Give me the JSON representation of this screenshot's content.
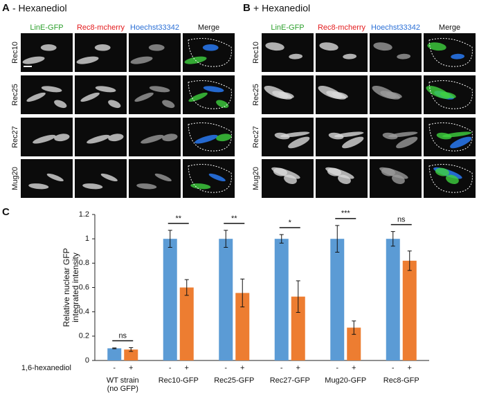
{
  "panels": [
    {
      "label": "A",
      "title": "- Hexanediol",
      "columns": [
        "LinE-GFP",
        "Rec8-mcherry",
        "Hoechst33342",
        "Merge"
      ],
      "rows": [
        "Rec10",
        "Rec25",
        "Rec27",
        "Mug20"
      ]
    },
    {
      "label": "B",
      "title": "+ Hexanediol",
      "columns": [
        "LinE-GFP",
        "Rec8-mcherry",
        "Hoechst33342",
        "Merge"
      ],
      "rows": [
        "Rec10",
        "Rec25",
        "Rec27",
        "Mug20"
      ]
    }
  ],
  "chart_data": {
    "type": "bar",
    "panel_label": "C",
    "ylabel": [
      "Relative nuclear GFP",
      "integrated intensity"
    ],
    "x_row_label": "1,6-hexanediol",
    "categories": [
      [
        "WT strain",
        "(no GFP)"
      ],
      [
        "Rec10-GFP"
      ],
      [
        "Rec25-GFP"
      ],
      [
        "Rec27-GFP"
      ],
      [
        "Mug20-GFP"
      ],
      [
        "Rec8-GFP"
      ]
    ],
    "series": [
      {
        "name": "-",
        "color": "#5b9bd5",
        "values": [
          0.1,
          1,
          1,
          1,
          1,
          1
        ],
        "errors": [
          0.003,
          0.07,
          0.07,
          0.035,
          0.11,
          0.06
        ]
      },
      {
        "name": "+",
        "color": "#ed7d31",
        "values": [
          0.09,
          0.6,
          0.555,
          0.525,
          0.27,
          0.82
        ],
        "errors": [
          0.015,
          0.065,
          0.115,
          0.13,
          0.055,
          0.08
        ]
      }
    ],
    "significance": [
      "ns",
      "**",
      "**",
      "*",
      "***",
      "ns"
    ],
    "ylim": [
      0,
      1.2
    ],
    "yticks": [
      0,
      0.2,
      0.4,
      0.6,
      0.8,
      1,
      1.2
    ]
  }
}
